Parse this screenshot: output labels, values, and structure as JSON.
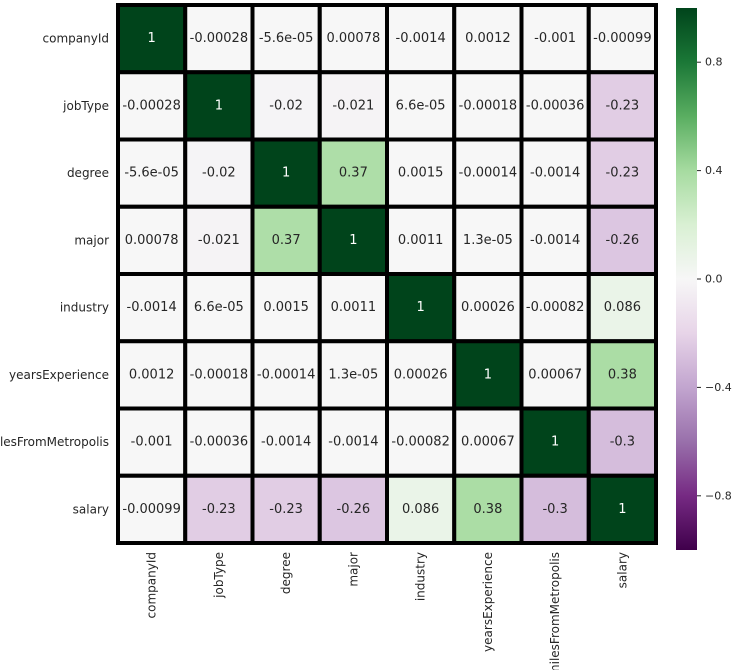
{
  "chart_data": {
    "type": "heatmap",
    "title": "",
    "xlabel": "",
    "ylabel": "",
    "row_labels": [
      "companyId",
      "jobType",
      "degree",
      "major",
      "industry",
      "yearsExperience",
      "milesFromMetropolis",
      "salary"
    ],
    "col_labels": [
      "companyId",
      "jobType",
      "degree",
      "major",
      "industry",
      "yearsExperience",
      "milesFromMetropolis",
      "salary"
    ],
    "values": [
      [
        1,
        -0.00028,
        -5.6e-05,
        0.00078,
        -0.0014,
        0.0012,
        -0.001,
        -0.00099
      ],
      [
        -0.00028,
        1,
        -0.02,
        -0.021,
        6.6e-05,
        -0.00018,
        -0.00036,
        -0.23
      ],
      [
        -5.6e-05,
        -0.02,
        1,
        0.37,
        0.0015,
        -0.00014,
        -0.0014,
        -0.23
      ],
      [
        0.00078,
        -0.021,
        0.37,
        1,
        0.0011,
        1.3e-05,
        -0.0014,
        -0.26
      ],
      [
        -0.0014,
        6.6e-05,
        0.0015,
        0.0011,
        1,
        0.00026,
        -0.00082,
        0.086
      ],
      [
        0.0012,
        -0.00018,
        -0.00014,
        1.3e-05,
        0.00026,
        1,
        0.00067,
        0.38
      ],
      [
        -0.001,
        -0.00036,
        -0.0014,
        -0.0014,
        -0.00082,
        0.00067,
        1,
        -0.3
      ],
      [
        -0.00099,
        -0.23,
        -0.23,
        -0.26,
        0.086,
        0.38,
        -0.3,
        1
      ]
    ],
    "annotations": [
      [
        "1",
        "-0.00028",
        "-5.6e-05",
        "0.00078",
        "-0.0014",
        "0.0012",
        "-0.001",
        "-0.00099"
      ],
      [
        "-0.00028",
        "1",
        "-0.02",
        "-0.021",
        "6.6e-05",
        "-0.00018",
        "-0.00036",
        "-0.23"
      ],
      [
        "-5.6e-05",
        "-0.02",
        "1",
        "0.37",
        "0.0015",
        "-0.00014",
        "-0.0014",
        "-0.23"
      ],
      [
        "0.00078",
        "-0.021",
        "0.37",
        "1",
        "0.0011",
        "1.3e-05",
        "-0.0014",
        "-0.26"
      ],
      [
        "-0.0014",
        "6.6e-05",
        "0.0015",
        "0.0011",
        "1",
        "0.00026",
        "-0.00082",
        "0.086"
      ],
      [
        "0.0012",
        "-0.00018",
        "-0.00014",
        "1.3e-05",
        "0.00026",
        "1",
        "0.00067",
        "0.38"
      ],
      [
        "-0.001",
        "-0.00036",
        "-0.0014",
        "-0.0014",
        "-0.00082",
        "0.00067",
        "1",
        "-0.3"
      ],
      [
        "-0.00099",
        "-0.23",
        "-0.23",
        "-0.26",
        "0.086",
        "0.38",
        "-0.3",
        "1"
      ]
    ],
    "colormap": "PRGn",
    "vmin": -1,
    "vmax": 1,
    "colorbar_ticks": [
      0.8,
      0.4,
      0.0,
      -0.4,
      -0.8
    ],
    "colorbar_tick_labels": [
      "0.8",
      "0.4",
      "0.0",
      "−0.4",
      "−0.8"
    ],
    "cell_border_color": "#000000"
  }
}
